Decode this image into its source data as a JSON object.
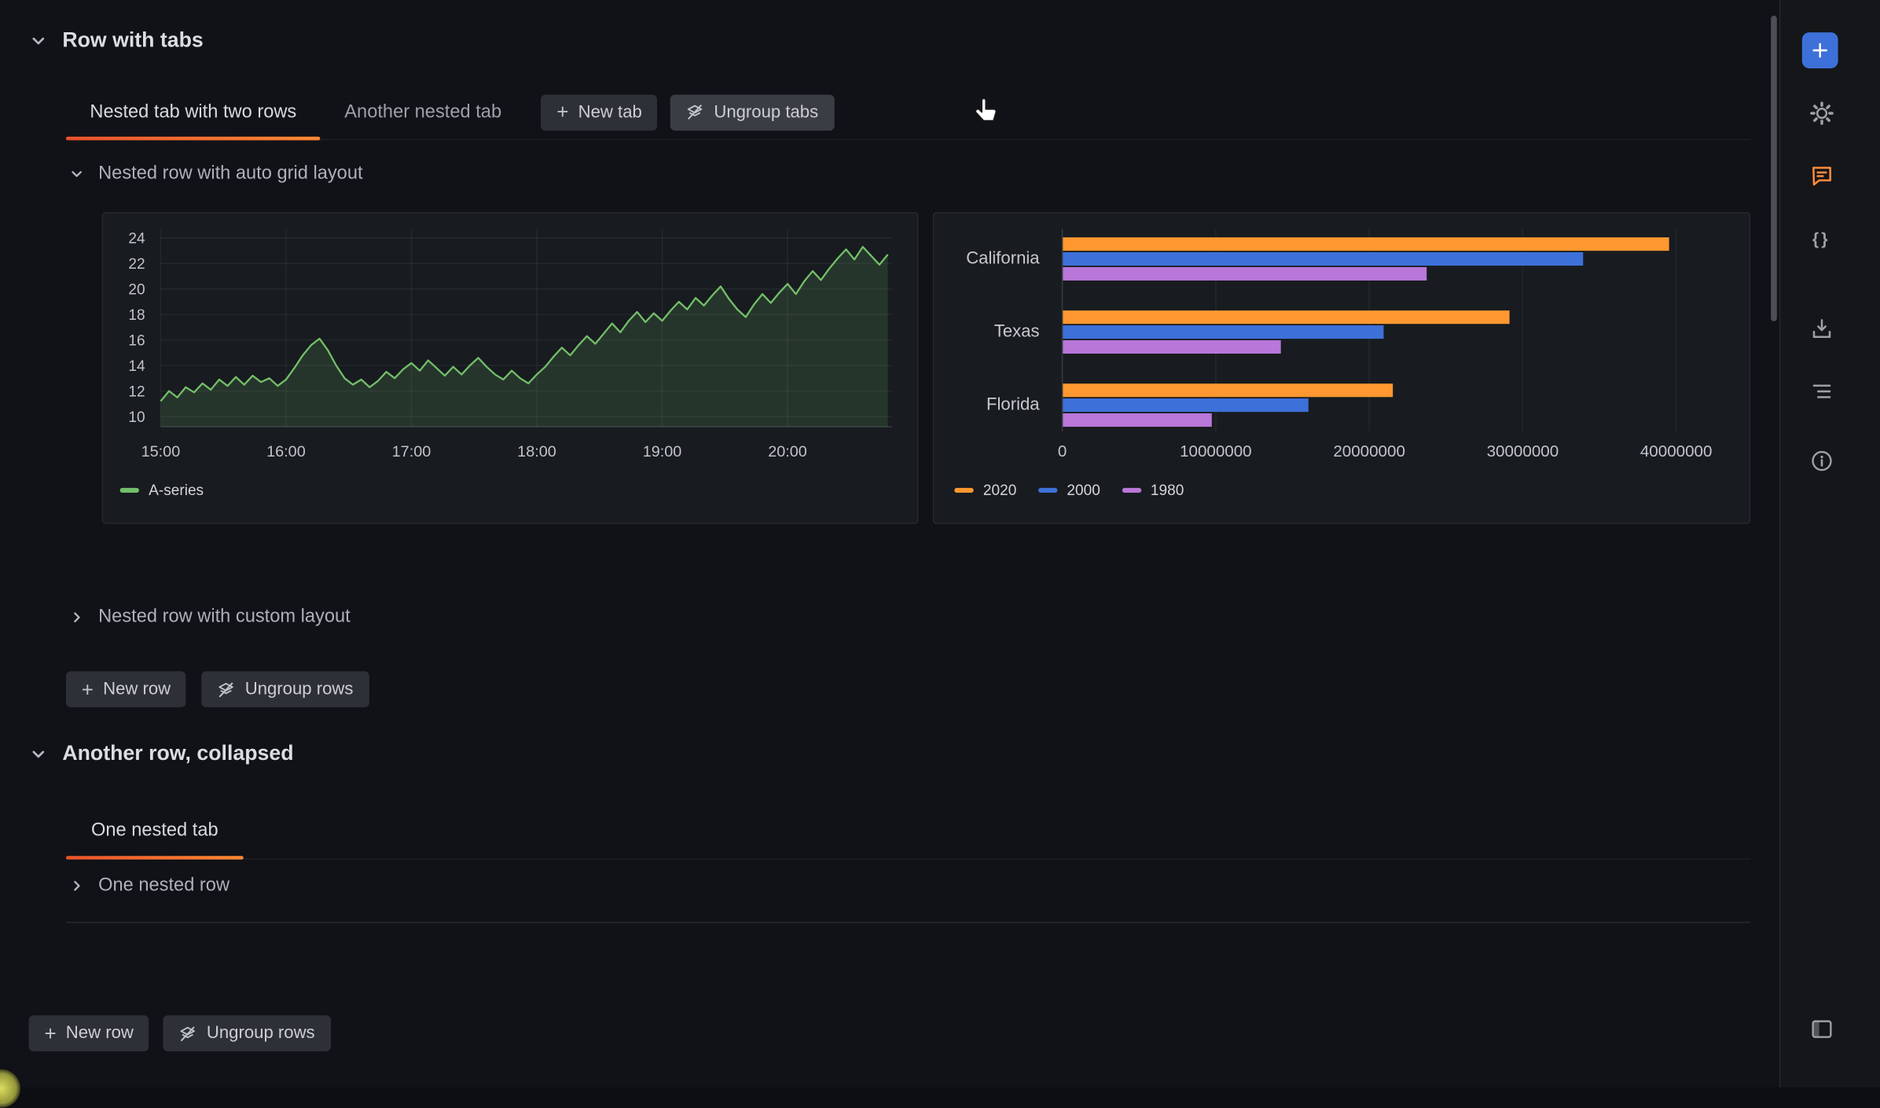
{
  "colors": {
    "accent_orange": "#ff780a",
    "panel_bg": "#181b1f",
    "blue": "#3d71d9",
    "green": "#73bf69"
  },
  "row1": {
    "title": "Row with tabs",
    "tabs": [
      {
        "label": "Nested tab with two rows"
      },
      {
        "label": "Another nested tab"
      }
    ],
    "actions": {
      "new_tab": "New tab",
      "ungroup_tabs": "Ungroup tabs"
    },
    "sections": [
      {
        "title": "Nested row with auto grid layout"
      },
      {
        "title": "Nested row with custom layout"
      }
    ],
    "row_actions": {
      "new_row": "New row",
      "ungroup_rows": "Ungroup rows"
    }
  },
  "row2": {
    "title": "Another row, collapsed",
    "tabs": [
      {
        "label": "One nested tab"
      }
    ],
    "sections": [
      {
        "title": "One nested row"
      }
    ]
  },
  "bottom_actions": {
    "new_row": "New row",
    "ungroup_rows": "Ungroup rows"
  },
  "icons": {
    "plus": "+",
    "braces": "{}"
  },
  "sidebar": {
    "items": [
      "add-panel",
      "settings",
      "comments",
      "json-model",
      "export",
      "outline",
      "info",
      "toggle-pane"
    ]
  },
  "chart_data": [
    {
      "type": "line",
      "title": "",
      "x_range": [
        0,
        350
      ],
      "y_range": [
        9.2,
        24.7
      ],
      "y_ticks": [
        10,
        12,
        14,
        16,
        18,
        20,
        22,
        24
      ],
      "x_tick_minutes": [
        0,
        60,
        120,
        180,
        240,
        300
      ],
      "x_tick_labels": [
        "15:00",
        "16:00",
        "17:00",
        "18:00",
        "19:00",
        "20:00"
      ],
      "grid": true,
      "legend_position": "bottom",
      "series": [
        {
          "name": "A-series",
          "color": "#73bf69",
          "fill_opacity": 0.16,
          "points": [
            [
              0,
              11.2
            ],
            [
              4,
              12.0
            ],
            [
              8,
              11.5
            ],
            [
              12,
              12.3
            ],
            [
              16,
              11.9
            ],
            [
              20,
              12.6
            ],
            [
              24,
              12.1
            ],
            [
              28,
              12.9
            ],
            [
              32,
              12.4
            ],
            [
              36,
              13.1
            ],
            [
              40,
              12.5
            ],
            [
              44,
              13.2
            ],
            [
              48,
              12.7
            ],
            [
              52,
              13.0
            ],
            [
              56,
              12.4
            ],
            [
              60,
              12.9
            ],
            [
              64,
              13.8
            ],
            [
              68,
              14.8
            ],
            [
              72,
              15.6
            ],
            [
              76,
              16.1
            ],
            [
              80,
              15.2
            ],
            [
              84,
              14.0
            ],
            [
              88,
              13.0
            ],
            [
              92,
              12.5
            ],
            [
              96,
              12.9
            ],
            [
              100,
              12.3
            ],
            [
              104,
              12.8
            ],
            [
              108,
              13.5
            ],
            [
              112,
              13.0
            ],
            [
              116,
              13.7
            ],
            [
              120,
              14.2
            ],
            [
              124,
              13.6
            ],
            [
              128,
              14.4
            ],
            [
              132,
              13.8
            ],
            [
              136,
              13.2
            ],
            [
              140,
              13.9
            ],
            [
              144,
              13.3
            ],
            [
              148,
              14.0
            ],
            [
              152,
              14.6
            ],
            [
              156,
              13.9
            ],
            [
              160,
              13.3
            ],
            [
              164,
              12.9
            ],
            [
              168,
              13.6
            ],
            [
              172,
              13.0
            ],
            [
              176,
              12.6
            ],
            [
              180,
              13.3
            ],
            [
              184,
              13.9
            ],
            [
              188,
              14.7
            ],
            [
              192,
              15.4
            ],
            [
              196,
              14.8
            ],
            [
              200,
              15.6
            ],
            [
              204,
              16.3
            ],
            [
              208,
              15.7
            ],
            [
              212,
              16.5
            ],
            [
              216,
              17.3
            ],
            [
              220,
              16.6
            ],
            [
              224,
              17.5
            ],
            [
              228,
              18.2
            ],
            [
              232,
              17.4
            ],
            [
              236,
              18.1
            ],
            [
              240,
              17.5
            ],
            [
              244,
              18.3
            ],
            [
              248,
              19.0
            ],
            [
              252,
              18.4
            ],
            [
              256,
              19.3
            ],
            [
              260,
              18.7
            ],
            [
              264,
              19.5
            ],
            [
              268,
              20.2
            ],
            [
              272,
              19.2
            ],
            [
              276,
              18.4
            ],
            [
              280,
              17.8
            ],
            [
              284,
              18.8
            ],
            [
              288,
              19.6
            ],
            [
              292,
              18.9
            ],
            [
              296,
              19.7
            ],
            [
              300,
              20.4
            ],
            [
              304,
              19.6
            ],
            [
              308,
              20.6
            ],
            [
              312,
              21.4
            ],
            [
              316,
              20.7
            ],
            [
              320,
              21.6
            ],
            [
              324,
              22.4
            ],
            [
              328,
              23.1
            ],
            [
              332,
              22.3
            ],
            [
              336,
              23.3
            ],
            [
              340,
              22.6
            ],
            [
              344,
              21.9
            ],
            [
              348,
              22.7
            ]
          ]
        }
      ]
    },
    {
      "type": "bar",
      "orientation": "horizontal",
      "title": "",
      "categories": [
        "California",
        "Texas",
        "Florida"
      ],
      "series": [
        {
          "name": "2020",
          "color": "#ff9830",
          "values": [
            39500000,
            29100000,
            21500000
          ]
        },
        {
          "name": "2000",
          "color": "#3d71d9",
          "values": [
            33900000,
            20900000,
            16000000
          ]
        },
        {
          "name": "1980",
          "color": "#b877d9",
          "values": [
            23700000,
            14200000,
            9700000
          ]
        }
      ],
      "x_ticks": [
        0,
        10000000,
        20000000,
        30000000,
        40000000
      ],
      "x_tick_labels": [
        "0",
        "10000000",
        "20000000",
        "30000000",
        "40000000"
      ],
      "xlim": [
        0,
        43400000
      ],
      "grid": true,
      "legend_position": "bottom"
    }
  ]
}
